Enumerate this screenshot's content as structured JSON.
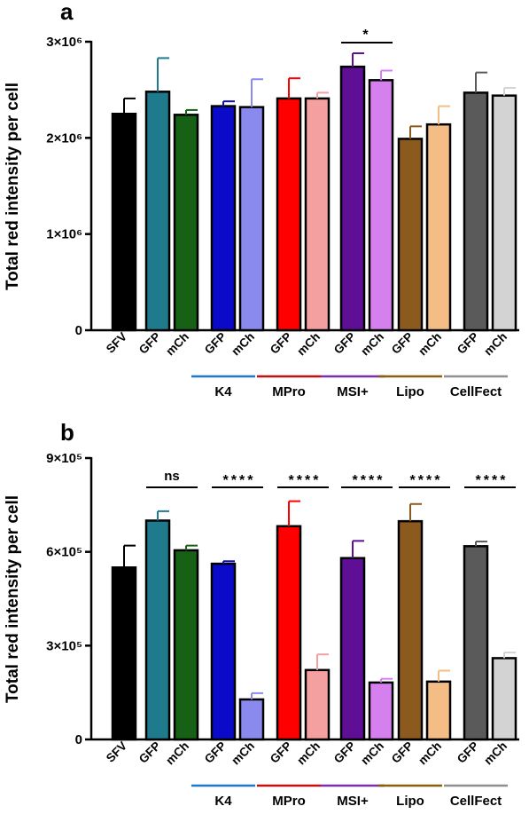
{
  "chart_data": [
    {
      "type": "bar",
      "panel": "a",
      "ylabel": "Total red intensity per cell",
      "ylim": [
        0,
        3000000
      ],
      "yticks": [
        {
          "value": 0,
          "label": "0"
        },
        {
          "value": 1000000,
          "label": "1×10⁶"
        },
        {
          "value": 2000000,
          "label": "2×10⁶"
        },
        {
          "value": 3000000,
          "label": "3×10⁶"
        }
      ],
      "categories": [
        "SFV",
        "GFP",
        "mCh",
        "GFP",
        "mCh",
        "GFP",
        "mCh",
        "GFP",
        "mCh",
        "GFP",
        "mCh",
        "GFP",
        "mCh"
      ],
      "values": [
        2250000,
        2480000,
        2240000,
        2330000,
        2320000,
        2410000,
        2410000,
        2740000,
        2600000,
        1990000,
        2140000,
        2470000,
        2440000
      ],
      "errors": [
        160000,
        350000,
        50000,
        50000,
        290000,
        210000,
        60000,
        140000,
        100000,
        130000,
        190000,
        210000,
        80000
      ],
      "colors": [
        "#000000",
        "#1e7a8c",
        "#176116",
        "#0a0ac8",
        "#8a8aee",
        "#ff0000",
        "#f5a0a0",
        "#5e0f96",
        "#d580ee",
        "#8c5a1f",
        "#f3bd85",
        "#5a5a5a",
        "#d3d3d3"
      ],
      "groups": [
        {
          "label": "K4",
          "color": "#1f78c8",
          "bars": [
            3,
            4
          ]
        },
        {
          "label": "MPro",
          "color": "#c01010",
          "bars": [
            5,
            6
          ]
        },
        {
          "label": "MSI+",
          "color": "#7a30a8",
          "bars": [
            7,
            8
          ]
        },
        {
          "label": "Lipo",
          "color": "#8a6010",
          "bars": [
            9,
            10
          ]
        },
        {
          "label": "CellFect",
          "color": "#909090",
          "bars": [
            11,
            12
          ]
        }
      ],
      "significance": [
        {
          "from": 7,
          "to": 8,
          "label": "*"
        }
      ]
    },
    {
      "type": "bar",
      "panel": "b",
      "ylabel": "Total red intensity per cell",
      "ylim": [
        0,
        900000
      ],
      "yticks": [
        {
          "value": 0,
          "label": "0"
        },
        {
          "value": 300000,
          "label": "3×10⁵"
        },
        {
          "value": 600000,
          "label": "6×10⁵"
        },
        {
          "value": 900000,
          "label": "9×10⁵"
        }
      ],
      "categories": [
        "SFV",
        "GFP",
        "mCh",
        "GFP",
        "mCh",
        "GFP",
        "mCh",
        "GFP",
        "mCh",
        "GFP",
        "mCh",
        "GFP",
        "mCh"
      ],
      "values": [
        550000,
        700000,
        605000,
        562000,
        128000,
        682000,
        222000,
        580000,
        182000,
        698000,
        185000,
        618000,
        260000
      ],
      "errors": [
        70000,
        30000,
        15000,
        8000,
        20000,
        80000,
        50000,
        55000,
        12000,
        55000,
        35000,
        15000,
        18000
      ],
      "colors": [
        "#000000",
        "#1e7a8c",
        "#176116",
        "#0a0ac8",
        "#8a8aee",
        "#ff0000",
        "#f5a0a0",
        "#5e0f96",
        "#d580ee",
        "#8c5a1f",
        "#f3bd85",
        "#5a5a5a",
        "#d3d3d3"
      ],
      "groups": [
        {
          "label": "K4",
          "color": "#1f78c8",
          "bars": [
            3,
            4
          ]
        },
        {
          "label": "MPro",
          "color": "#c01010",
          "bars": [
            5,
            6
          ]
        },
        {
          "label": "MSI+",
          "color": "#7a30a8",
          "bars": [
            7,
            8
          ]
        },
        {
          "label": "Lipo",
          "color": "#8a6010",
          "bars": [
            9,
            10
          ]
        },
        {
          "label": "CellFect",
          "color": "#909090",
          "bars": [
            11,
            12
          ]
        }
      ],
      "significance": [
        {
          "from": 1,
          "to": 2,
          "label": "ns"
        },
        {
          "from": 3,
          "to": 4,
          "label": "****"
        },
        {
          "from": 5,
          "to": 6,
          "label": "****"
        },
        {
          "from": 7,
          "to": 8,
          "label": "****"
        },
        {
          "from": 9,
          "to": 10,
          "label": "****"
        },
        {
          "from": 11,
          "to": 12,
          "label": "****"
        }
      ]
    }
  ]
}
